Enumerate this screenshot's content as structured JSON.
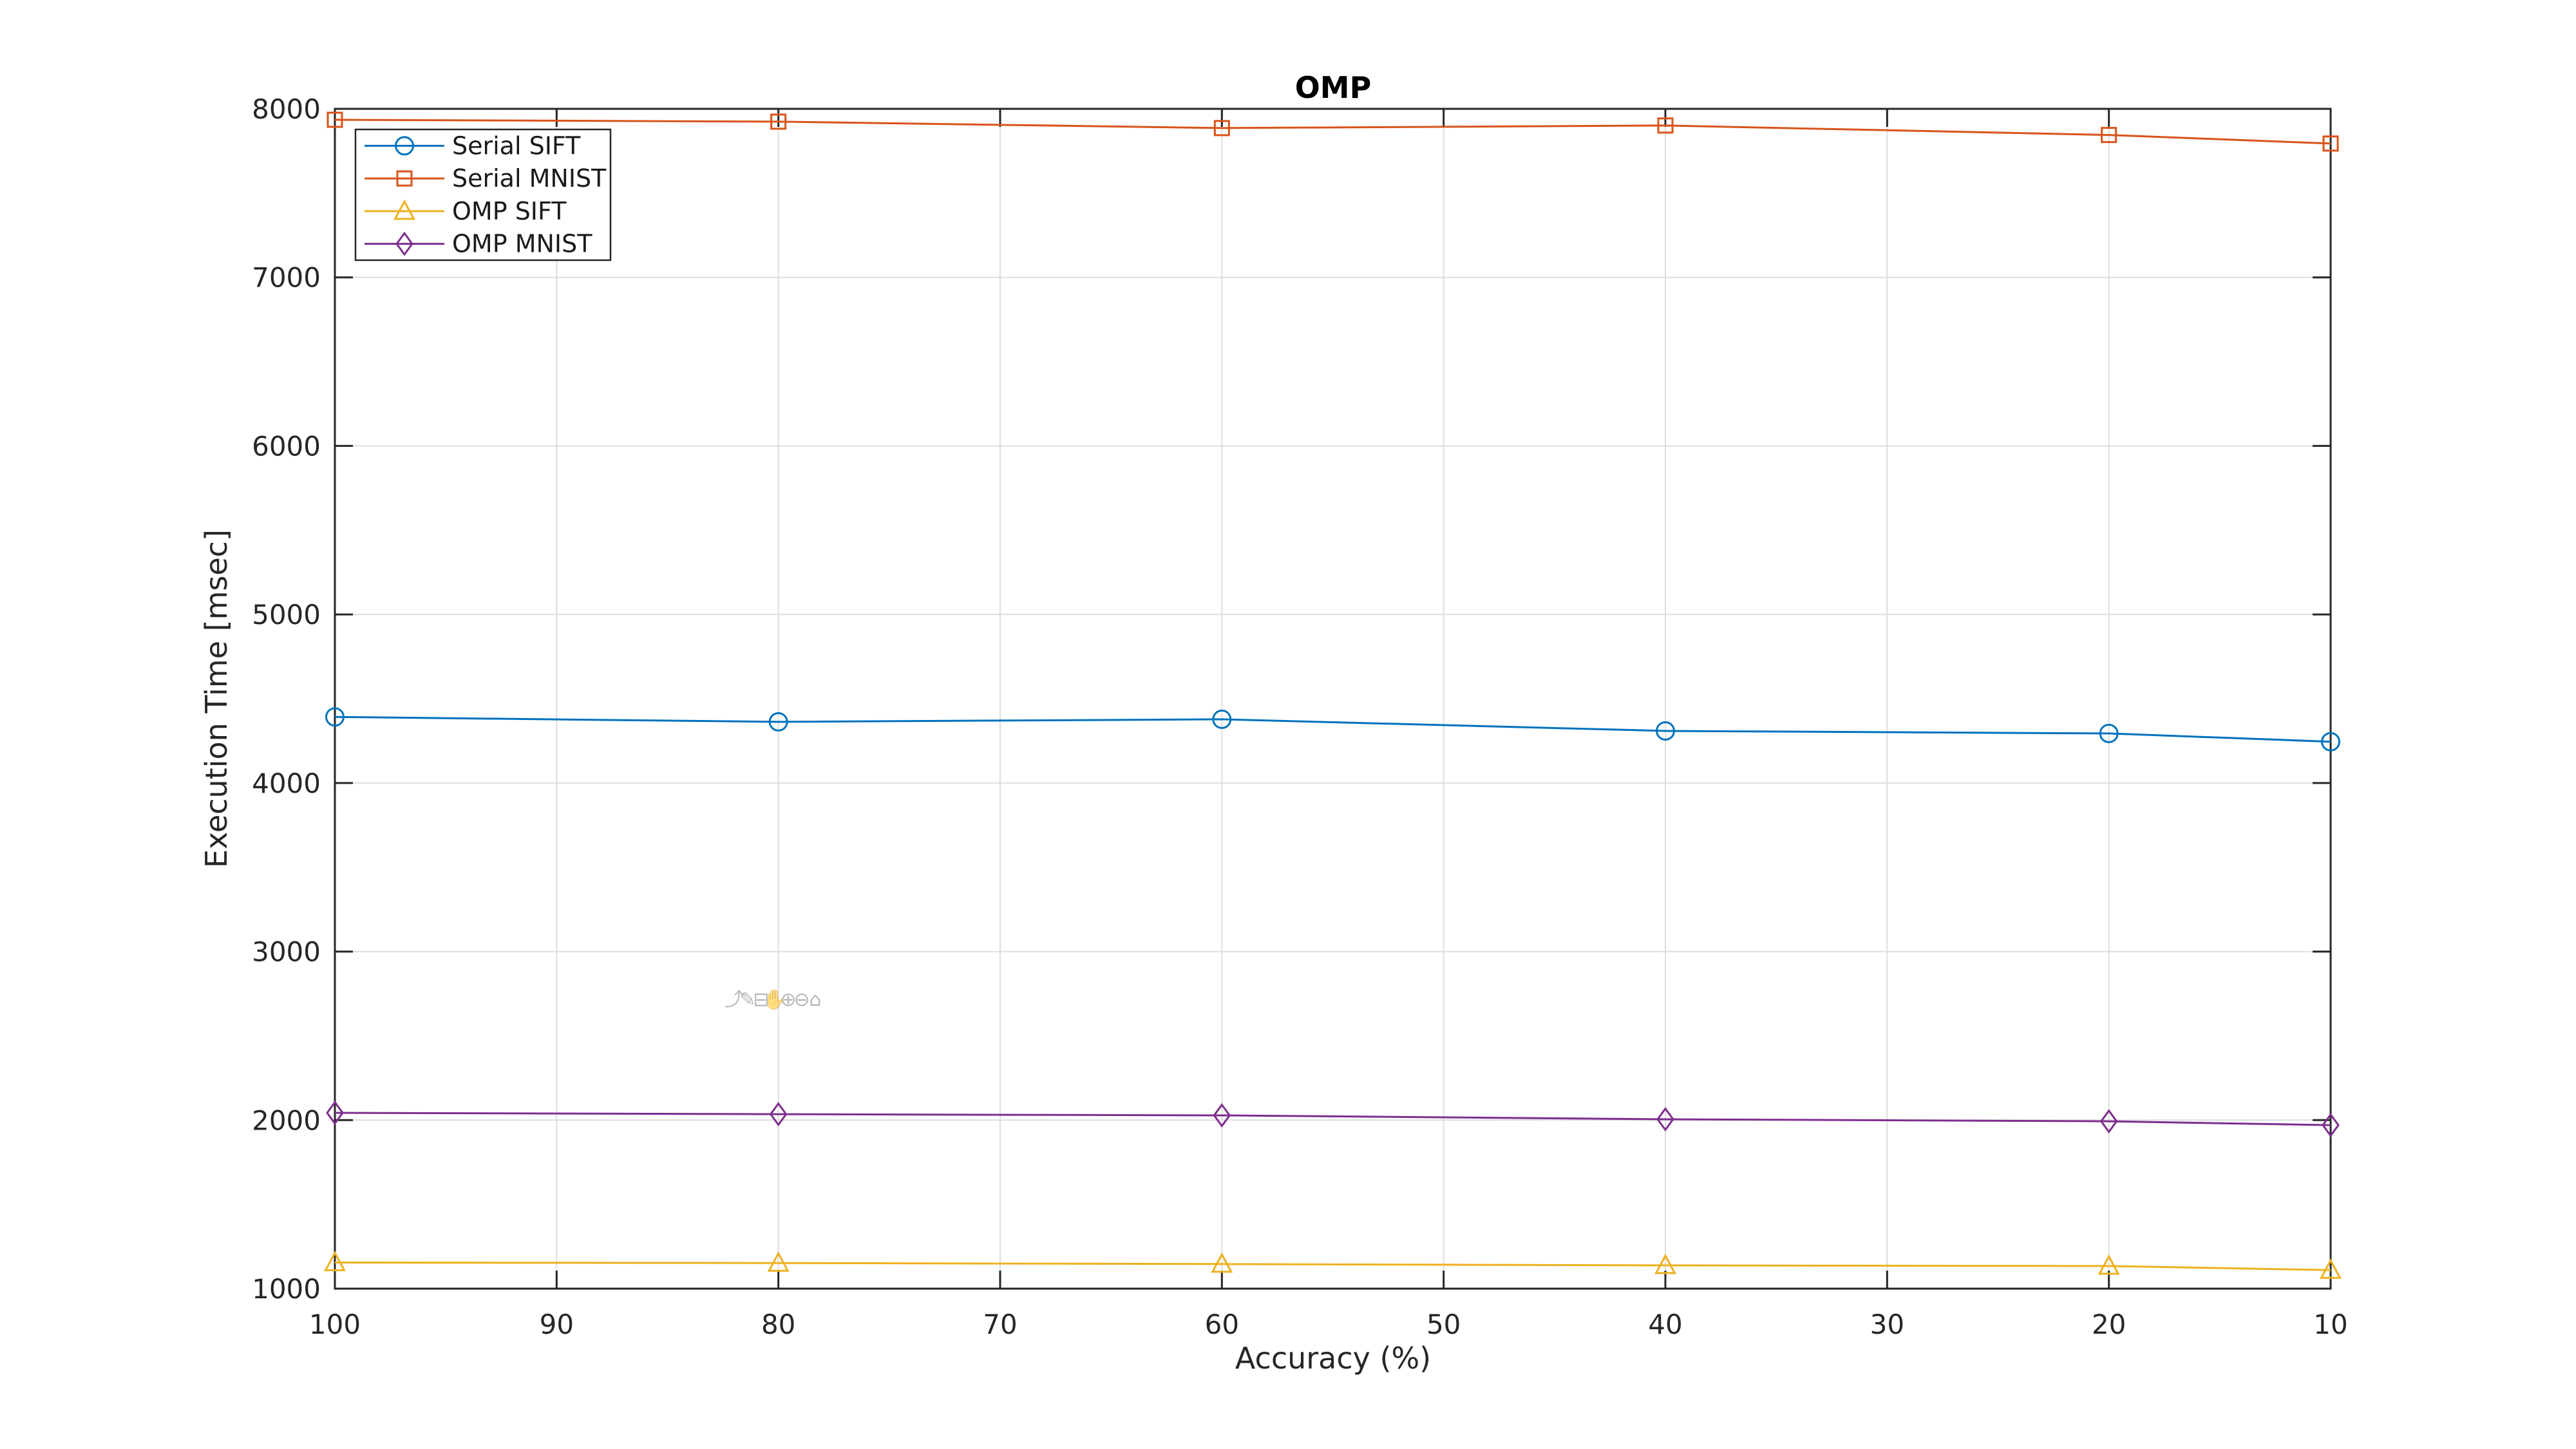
{
  "figure_title": "OMP",
  "colors": {
    "serial_sift": "#0072BD",
    "serial_mnist": "#D95319",
    "omp_sift": "#EDB120",
    "omp_mnist": "#7E2F8E",
    "axis": "#262626",
    "grid": "#DEDEDE",
    "toolbar_gray": "#8C8C8C"
  },
  "axes_toolbar": {
    "icons": [
      {
        "name": "export-icon",
        "glyph": "⤴"
      },
      {
        "name": "brush-icon",
        "glyph": "✎"
      },
      {
        "name": "datatips-icon",
        "glyph": "⊟"
      },
      {
        "name": "pan-icon",
        "glyph": "✋"
      },
      {
        "name": "zoom-in-icon",
        "glyph": "⊕"
      },
      {
        "name": "zoom-out-icon",
        "glyph": "⊖"
      },
      {
        "name": "home-icon",
        "glyph": "⌂"
      }
    ]
  },
  "chart_data": {
    "type": "line",
    "title": "OMP",
    "xlabel": "Accuracy (%)",
    "ylabel": "Execution Time [msec]",
    "x": [
      100,
      80,
      60,
      40,
      20,
      10
    ],
    "x_ticks": [
      100,
      90,
      80,
      70,
      60,
      50,
      40,
      30,
      20,
      10
    ],
    "x_axis_reversed": true,
    "xlim": [
      100,
      10
    ],
    "ylim": [
      1000,
      8000
    ],
    "y_ticks": [
      1000,
      2000,
      3000,
      4000,
      5000,
      6000,
      7000,
      8000
    ],
    "grid": true,
    "box": true,
    "legend_position": "top-left-inside",
    "series": [
      {
        "name": "Serial SIFT",
        "marker": "circle",
        "color": "#0072BD",
        "values": [
          4392,
          4363,
          4378,
          4309,
          4294,
          4245
        ]
      },
      {
        "name": "Serial MNIST",
        "marker": "square",
        "color": "#D95319",
        "values": [
          7935,
          7924,
          7886,
          7901,
          7845,
          7794
        ]
      },
      {
        "name": "OMP SIFT",
        "marker": "triangle",
        "color": "#EDB120",
        "values": [
          1155,
          1152,
          1146,
          1138,
          1134,
          1110
        ]
      },
      {
        "name": "OMP MNIST",
        "marker": "diamond",
        "color": "#7E2F8E",
        "values": [
          2043,
          2035,
          2028,
          2005,
          1993,
          1970
        ]
      }
    ]
  }
}
